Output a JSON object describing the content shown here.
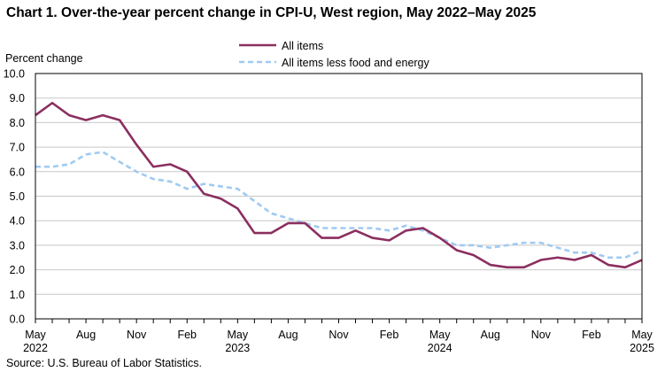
{
  "chart_data": {
    "type": "line",
    "title": "Chart 1. Over-the-year percent change in CPI-U, West region, May 2022–May  2025",
    "ylabel": "Percent change",
    "xlabel": "",
    "ylim": [
      0,
      10
    ],
    "yticks": [
      "0.0",
      "1.0",
      "2.0",
      "3.0",
      "4.0",
      "5.0",
      "6.0",
      "7.0",
      "8.0",
      "9.0",
      "10.0"
    ],
    "x": [
      "May 2022",
      "Jun 2022",
      "Jul 2022",
      "Aug 2022",
      "Sep 2022",
      "Oct 2022",
      "Nov 2022",
      "Dec 2022",
      "Jan 2023",
      "Feb 2023",
      "Mar 2023",
      "Apr 2023",
      "May 2023",
      "Jun 2023",
      "Jul 2023",
      "Aug 2023",
      "Sep 2023",
      "Oct 2023",
      "Nov 2023",
      "Dec 2023",
      "Jan 2024",
      "Feb 2024",
      "Mar 2024",
      "Apr 2024",
      "May 2024",
      "Jun 2024",
      "Jul 2024",
      "Aug 2024",
      "Sep 2024",
      "Oct 2024",
      "Nov 2024",
      "Dec 2024",
      "Jan 2025",
      "Feb 2025",
      "Mar 2025",
      "Apr 2025",
      "May 2025"
    ],
    "xtick_labels": [
      {
        "index": 0,
        "line1": "May",
        "line2": "2022"
      },
      {
        "index": 3,
        "line1": "Aug",
        "line2": ""
      },
      {
        "index": 6,
        "line1": "Nov",
        "line2": ""
      },
      {
        "index": 9,
        "line1": "Feb",
        "line2": ""
      },
      {
        "index": 12,
        "line1": "May",
        "line2": "2023"
      },
      {
        "index": 15,
        "line1": "Aug",
        "line2": ""
      },
      {
        "index": 18,
        "line1": "Nov",
        "line2": ""
      },
      {
        "index": 21,
        "line1": "Feb",
        "line2": ""
      },
      {
        "index": 24,
        "line1": "May",
        "line2": "2024"
      },
      {
        "index": 27,
        "line1": "Aug",
        "line2": ""
      },
      {
        "index": 30,
        "line1": "Nov",
        "line2": ""
      },
      {
        "index": 33,
        "line1": "Feb",
        "line2": ""
      },
      {
        "index": 36,
        "line1": "May",
        "line2": "2025"
      }
    ],
    "series": [
      {
        "name": "All items",
        "color": "#8b2f5f",
        "style": "solid",
        "values": [
          8.3,
          8.8,
          8.3,
          8.1,
          8.3,
          8.1,
          7.1,
          6.2,
          6.3,
          6.0,
          5.1,
          4.9,
          4.5,
          3.5,
          3.5,
          3.9,
          3.9,
          3.3,
          3.3,
          3.6,
          3.3,
          3.2,
          3.6,
          3.7,
          3.3,
          2.8,
          2.6,
          2.2,
          2.1,
          2.1,
          2.4,
          2.5,
          2.4,
          2.6,
          2.2,
          2.1,
          2.4
        ]
      },
      {
        "name": "All items less food and energy",
        "color": "#9fcaf2",
        "style": "dashed",
        "values": [
          6.2,
          6.2,
          6.3,
          6.7,
          6.8,
          6.4,
          6.0,
          5.7,
          5.6,
          5.3,
          5.5,
          5.4,
          5.3,
          4.8,
          4.3,
          4.1,
          3.9,
          3.7,
          3.7,
          3.7,
          3.7,
          3.6,
          3.8,
          3.6,
          3.3,
          3.0,
          3.0,
          2.9,
          3.0,
          3.1,
          3.1,
          2.9,
          2.7,
          2.7,
          2.5,
          2.5,
          2.8
        ]
      }
    ],
    "grid": true,
    "legend_position": "top-center",
    "source": "Source: U.S. Bureau  of Labor Statistics."
  }
}
